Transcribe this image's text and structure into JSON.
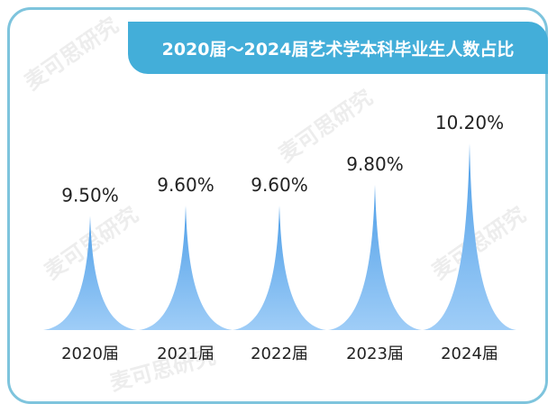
{
  "title": "2020届～2024届艺术学本科毕业生人数占比",
  "watermark_text": "麦可思研究",
  "colors": {
    "frame": "#7ec4dd",
    "title_bg": "#43aed9",
    "peak_top": "#4f9fe8",
    "peak_bottom": "#9fcdf7"
  },
  "chart_data": {
    "type": "bar",
    "title": "2020届～2024届艺术学本科毕业生人数占比",
    "xlabel": "",
    "ylabel": "",
    "categories": [
      "2020届",
      "2021届",
      "2022届",
      "2023届",
      "2024届"
    ],
    "values": [
      9.5,
      9.6,
      9.6,
      9.8,
      10.2
    ],
    "value_labels": [
      "9.50%",
      "9.60%",
      "9.60%",
      "9.80%",
      "10.20%"
    ],
    "unit": "%",
    "grid": false,
    "legend": "none"
  }
}
